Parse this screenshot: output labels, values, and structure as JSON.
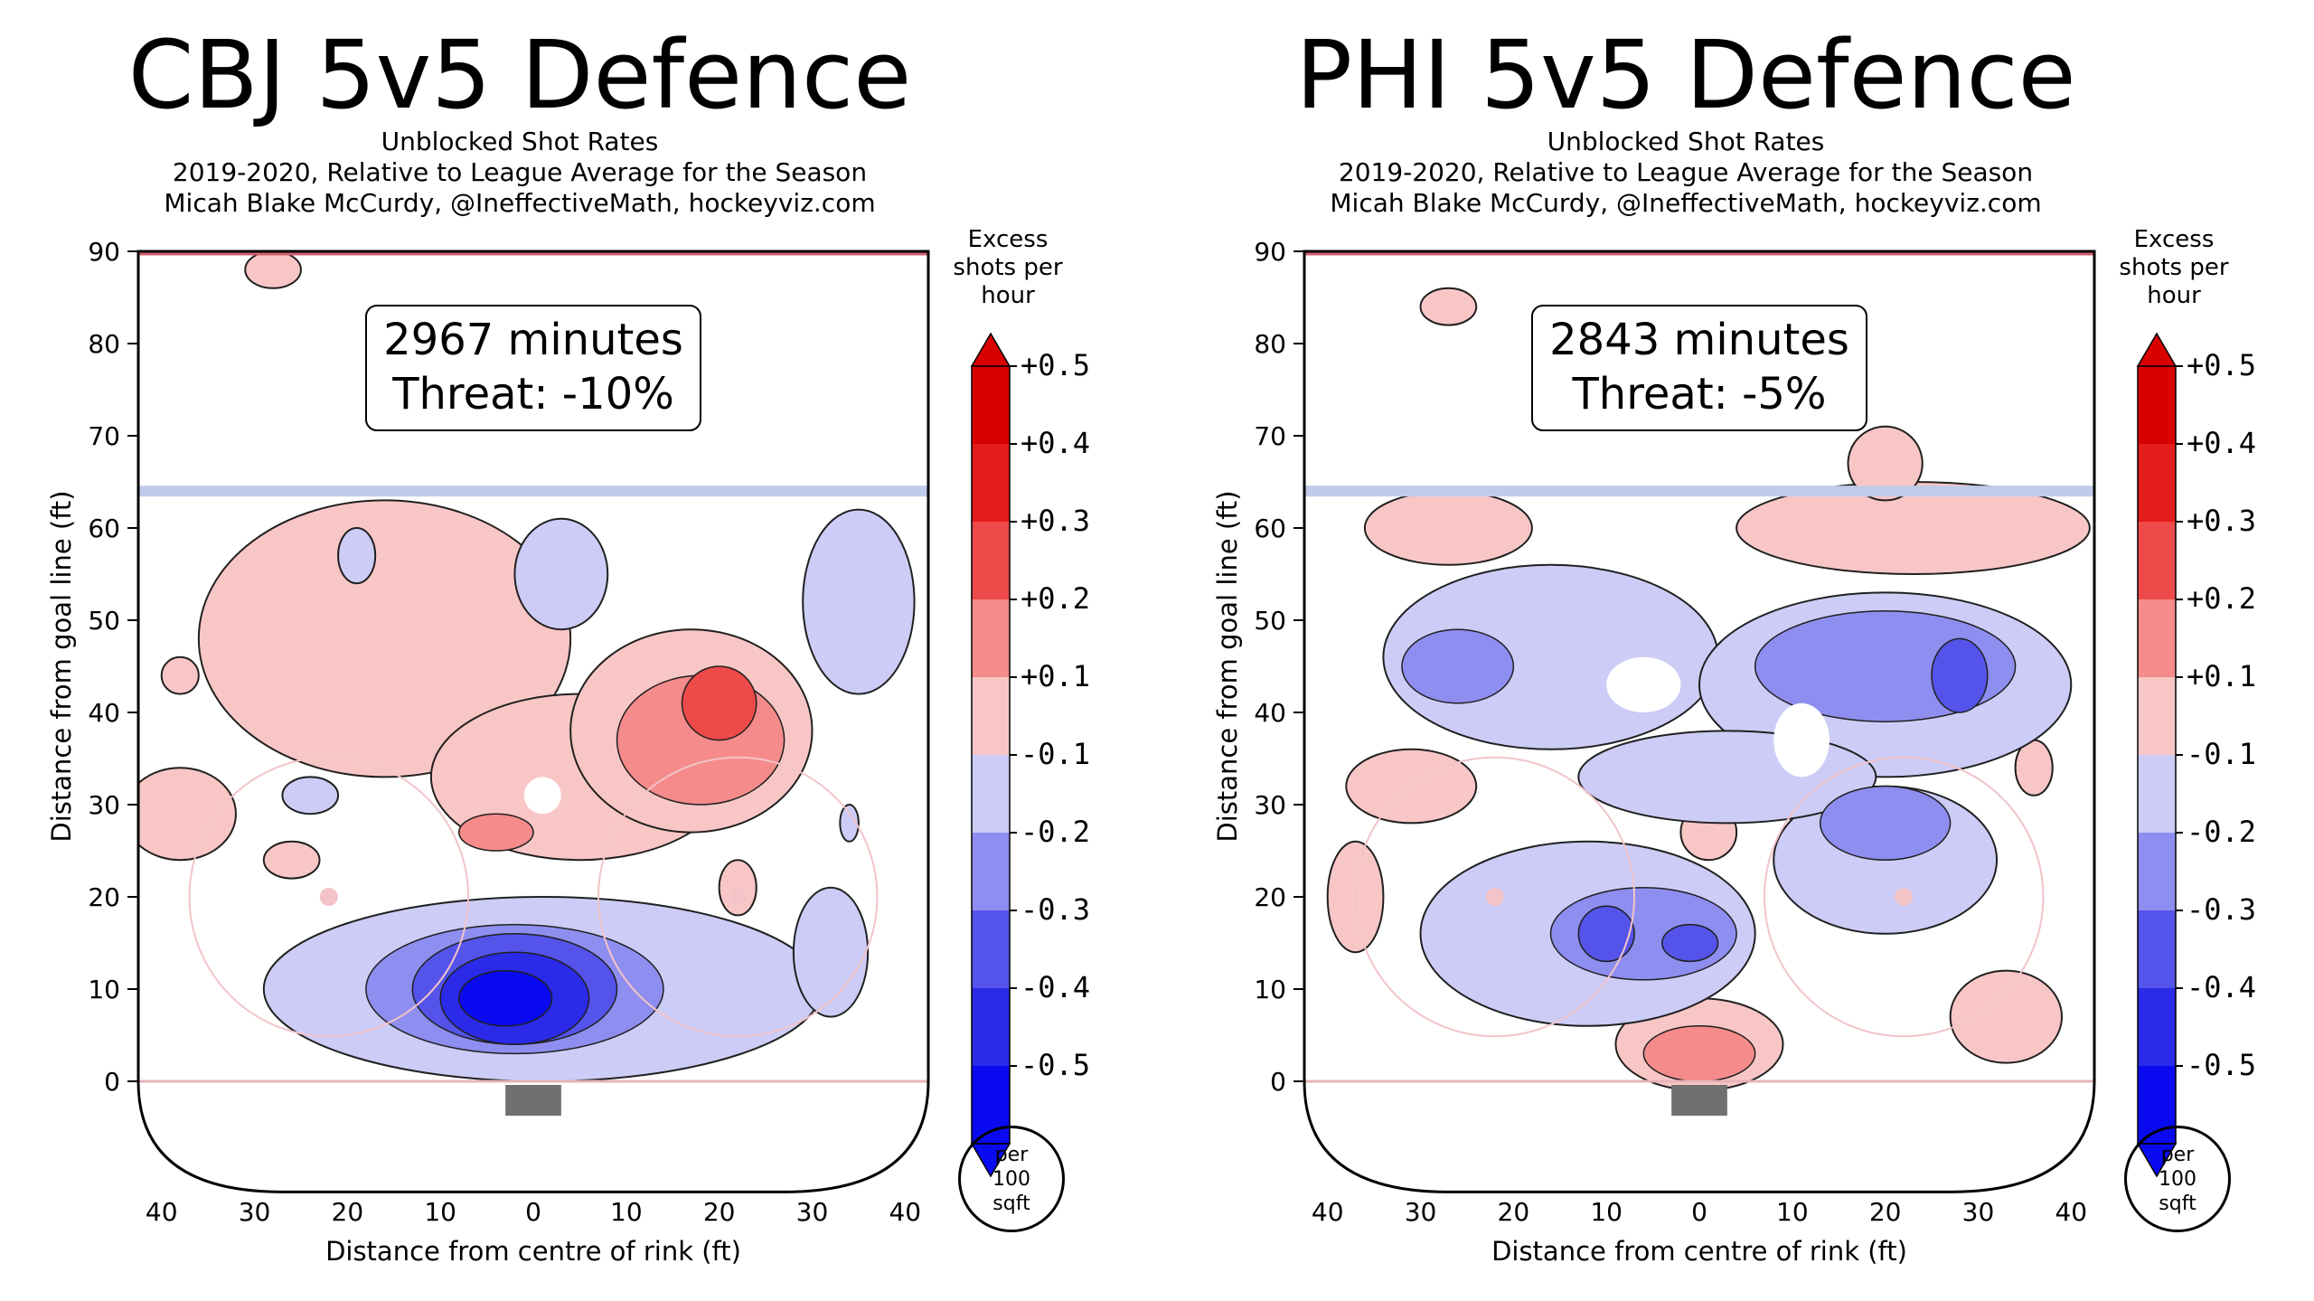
{
  "chart_data": [
    {
      "type": "heatmap",
      "title": "CBJ 5v5 Defence",
      "subtitle_lines": [
        "Unblocked Shot Rates",
        "2019-2020, Relative to League Average for the Season",
        "Micah Blake McCurdy, @IneffectiveMath, hockeyviz.com"
      ],
      "annotation": {
        "minutes": "2967 minutes",
        "threat": "Threat: -10%"
      },
      "xlabel": "Distance from centre of rink (ft)",
      "ylabel": "Distance from goal line (ft)",
      "x_ticks": [
        "40",
        "30",
        "20",
        "10",
        "0",
        "10",
        "20",
        "30",
        "40"
      ],
      "y_ticks": [
        "0",
        "10",
        "20",
        "30",
        "40",
        "50",
        "60",
        "70",
        "80",
        "90"
      ],
      "colorbar": {
        "title": "Excess shots per hour",
        "labels": [
          "+0.5",
          "+0.4",
          "+0.3",
          "+0.2",
          "+0.1",
          "-0.1",
          "-0.2",
          "-0.3",
          "-0.4",
          "-0.5"
        ],
        "unit": [
          "per",
          "100",
          "sqft"
        ]
      },
      "regions": [
        {
          "sign": 1,
          "level": 1,
          "cx": -28,
          "cy": 88,
          "rx": 3,
          "ry": 2
        },
        {
          "sign": 1,
          "level": 1,
          "cx": -16,
          "cy": 48,
          "rx": 20,
          "ry": 15
        },
        {
          "sign": 1,
          "level": 1,
          "cx": 5,
          "cy": 33,
          "rx": 16,
          "ry": 9
        },
        {
          "sign": 1,
          "level": 1,
          "cx": 17,
          "cy": 38,
          "rx": 13,
          "ry": 11
        },
        {
          "sign": 1,
          "level": 1,
          "cx": -38,
          "cy": 29,
          "rx": 6,
          "ry": 5
        },
        {
          "sign": 1,
          "level": 1,
          "cx": -38,
          "cy": 44,
          "rx": 2,
          "ry": 2
        },
        {
          "sign": 1,
          "level": 1,
          "cx": -26,
          "cy": 24,
          "rx": 3,
          "ry": 2
        },
        {
          "sign": 1,
          "level": 1,
          "cx": 22,
          "cy": 21,
          "rx": 2,
          "ry": 3
        },
        {
          "sign": 1,
          "level": 2,
          "cx": 18,
          "cy": 37,
          "rx": 9,
          "ry": 7
        },
        {
          "sign": 1,
          "level": 2,
          "cx": -4,
          "cy": 27,
          "rx": 4,
          "ry": 2
        },
        {
          "sign": 1,
          "level": 3,
          "cx": 20,
          "cy": 41,
          "rx": 4,
          "ry": 4
        },
        {
          "sign": -1,
          "level": 1,
          "cx": 1,
          "cy": 10,
          "rx": 30,
          "ry": 10
        },
        {
          "sign": -1,
          "level": 1,
          "cx": 35,
          "cy": 52,
          "rx": 6,
          "ry": 10
        },
        {
          "sign": -1,
          "level": 1,
          "cx": 32,
          "cy": 14,
          "rx": 4,
          "ry": 7
        },
        {
          "sign": -1,
          "level": 1,
          "cx": 3,
          "cy": 55,
          "rx": 5,
          "ry": 6
        },
        {
          "sign": -1,
          "level": 1,
          "cx": -19,
          "cy": 57,
          "rx": 2,
          "ry": 3
        },
        {
          "sign": -1,
          "level": 1,
          "cx": -24,
          "cy": 31,
          "rx": 3,
          "ry": 2
        },
        {
          "sign": -1,
          "level": 1,
          "cx": 34,
          "cy": 28,
          "rx": 1,
          "ry": 2
        },
        {
          "sign": -1,
          "level": 2,
          "cx": -2,
          "cy": 10,
          "rx": 16,
          "ry": 7
        },
        {
          "sign": -1,
          "level": 3,
          "cx": -2,
          "cy": 10,
          "rx": 11,
          "ry": 6
        },
        {
          "sign": -1,
          "level": 4,
          "cx": -2,
          "cy": 9,
          "rx": 8,
          "ry": 5
        },
        {
          "sign": -1,
          "level": 5,
          "cx": -3,
          "cy": 9,
          "rx": 5,
          "ry": 3
        },
        {
          "sign": 0,
          "level": 0,
          "cx": 1,
          "cy": 31,
          "rx": 2,
          "ry": 2
        }
      ]
    },
    {
      "type": "heatmap",
      "title": "PHI 5v5 Defence",
      "subtitle_lines": [
        "Unblocked Shot Rates",
        "2019-2020, Relative to League Average for the Season",
        "Micah Blake McCurdy, @IneffectiveMath, hockeyviz.com"
      ],
      "annotation": {
        "minutes": "2843 minutes",
        "threat": "Threat: -5%"
      },
      "xlabel": "Distance from centre of rink (ft)",
      "ylabel": "Distance from goal line (ft)",
      "x_ticks": [
        "40",
        "30",
        "20",
        "10",
        "0",
        "10",
        "20",
        "30",
        "40"
      ],
      "y_ticks": [
        "0",
        "10",
        "20",
        "30",
        "40",
        "50",
        "60",
        "70",
        "80",
        "90"
      ],
      "colorbar": {
        "title": "Excess shots per hour",
        "labels": [
          "+0.5",
          "+0.4",
          "+0.3",
          "+0.2",
          "+0.1",
          "-0.1",
          "-0.2",
          "-0.3",
          "-0.4",
          "-0.5"
        ],
        "unit": [
          "per",
          "100",
          "sqft"
        ]
      },
      "regions": [
        {
          "sign": 1,
          "level": 1,
          "cx": -27,
          "cy": 84,
          "rx": 3,
          "ry": 2
        },
        {
          "sign": 1,
          "level": 1,
          "cx": -27,
          "cy": 60,
          "rx": 9,
          "ry": 4
        },
        {
          "sign": 1,
          "level": 1,
          "cx": 23,
          "cy": 60,
          "rx": 19,
          "ry": 5
        },
        {
          "sign": 1,
          "level": 1,
          "cx": 20,
          "cy": 67,
          "rx": 4,
          "ry": 4
        },
        {
          "sign": 1,
          "level": 1,
          "cx": -31,
          "cy": 32,
          "rx": 7,
          "ry": 4
        },
        {
          "sign": 1,
          "level": 1,
          "cx": -37,
          "cy": 20,
          "rx": 3,
          "ry": 6
        },
        {
          "sign": 1,
          "level": 1,
          "cx": 1,
          "cy": 27,
          "rx": 3,
          "ry": 3
        },
        {
          "sign": 1,
          "level": 1,
          "cx": 36,
          "cy": 34,
          "rx": 2,
          "ry": 3
        },
        {
          "sign": 1,
          "level": 1,
          "cx": 33,
          "cy": 7,
          "rx": 6,
          "ry": 5
        },
        {
          "sign": 1,
          "level": 1,
          "cx": 0,
          "cy": 4,
          "rx": 9,
          "ry": 5
        },
        {
          "sign": 1,
          "level": 2,
          "cx": 0,
          "cy": 3,
          "rx": 6,
          "ry": 3
        },
        {
          "sign": -1,
          "level": 1,
          "cx": -16,
          "cy": 46,
          "rx": 18,
          "ry": 10
        },
        {
          "sign": -1,
          "level": 1,
          "cx": 20,
          "cy": 43,
          "rx": 20,
          "ry": 10
        },
        {
          "sign": -1,
          "level": 1,
          "cx": -12,
          "cy": 16,
          "rx": 18,
          "ry": 10
        },
        {
          "sign": -1,
          "level": 1,
          "cx": 20,
          "cy": 24,
          "rx": 12,
          "ry": 8
        },
        {
          "sign": -1,
          "level": 1,
          "cx": 3,
          "cy": 33,
          "rx": 16,
          "ry": 5
        },
        {
          "sign": -1,
          "level": 2,
          "cx": -26,
          "cy": 45,
          "rx": 6,
          "ry": 4
        },
        {
          "sign": -1,
          "level": 2,
          "cx": 20,
          "cy": 45,
          "rx": 14,
          "ry": 6
        },
        {
          "sign": -1,
          "level": 2,
          "cx": -6,
          "cy": 16,
          "rx": 10,
          "ry": 5
        },
        {
          "sign": -1,
          "level": 2,
          "cx": 20,
          "cy": 28,
          "rx": 7,
          "ry": 4
        },
        {
          "sign": -1,
          "level": 3,
          "cx": 28,
          "cy": 44,
          "rx": 3,
          "ry": 4
        },
        {
          "sign": -1,
          "level": 3,
          "cx": -10,
          "cy": 16,
          "rx": 3,
          "ry": 3
        },
        {
          "sign": -1,
          "level": 3,
          "cx": -1,
          "cy": 15,
          "rx": 3,
          "ry": 2
        },
        {
          "sign": 0,
          "level": 0,
          "cx": -6,
          "cy": 43,
          "rx": 4,
          "ry": 3
        },
        {
          "sign": 0,
          "level": 0,
          "cx": 11,
          "cy": 37,
          "rx": 3,
          "ry": 4
        }
      ]
    }
  ],
  "colors": {
    "positive": [
      "#ffffff",
      "#f9c6c6",
      "#f58b8b",
      "#ee4a4a",
      "#e31c1c",
      "#d90000"
    ],
    "negative": [
      "#ffffff",
      "#ccccf7",
      "#8e8ef0",
      "#5454ea",
      "#2a2ae8",
      "#0a0af0"
    ],
    "blue_line": "#bfcbe8",
    "red_line": "#e7b3b8",
    "faceoff": "#f2c4c8",
    "crease": "#707070"
  }
}
